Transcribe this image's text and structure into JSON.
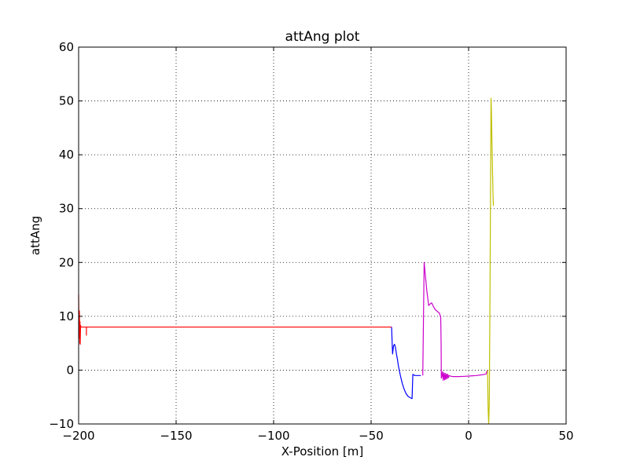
{
  "chart_data": {
    "type": "line",
    "title": "attAng plot",
    "xlabel": "X-Position [m]",
    "ylabel": "attAng",
    "xlim": [
      -200,
      50
    ],
    "ylim": [
      -10,
      60
    ],
    "x_ticks": [
      -200,
      -150,
      -100,
      -50,
      0,
      50
    ],
    "y_ticks": [
      -10,
      0,
      10,
      20,
      30,
      40,
      50,
      60
    ],
    "x_tick_labels": [
      "−200",
      "−150",
      "−100",
      "−50",
      "0",
      "50"
    ],
    "y_tick_labels": [
      "−10",
      "0",
      "10",
      "20",
      "30",
      "40",
      "50",
      "60"
    ],
    "grid": true,
    "grid_style": "dotted",
    "legend": false,
    "series": [
      {
        "color": "#ff0000",
        "x": [
          -200,
          -199.8,
          -199.6,
          -199.4,
          -199.3,
          -199.2,
          -199.0,
          -198.8,
          -198.5,
          -197.5,
          -196.5,
          -196.0,
          -196.0,
          -196.0,
          -195.0,
          -150,
          -100,
          -50,
          -39.5
        ],
        "y": [
          14,
          6,
          11,
          5,
          9,
          4.8,
          8.3,
          8.0,
          8.0,
          8.0,
          8.0,
          8.0,
          6.5,
          8.0,
          8.0,
          8.0,
          8.0,
          8.0,
          8.0
        ]
      },
      {
        "color": "#0000ff",
        "x": [
          -39.5,
          -39.2,
          -39,
          -38.5,
          -38,
          -37.5,
          -37,
          -36.5,
          -36,
          -35,
          -34,
          -33,
          -32,
          -31,
          -30,
          -29.5,
          -29,
          -28.8,
          -28.6,
          -27.5,
          -26.5,
          -25.5,
          -24.5
        ],
        "y": [
          8,
          5,
          3,
          4.5,
          4.8,
          4.2,
          3.0,
          2.0,
          0.8,
          -1.0,
          -2.5,
          -3.6,
          -4.4,
          -4.9,
          -5.1,
          -5.2,
          -5.3,
          -3,
          -0.8,
          -1,
          -1,
          -1,
          -1
        ]
      },
      {
        "color": "#cc00cc",
        "x": [
          -23.5,
          -22.8,
          -21.5,
          -20.5,
          -20,
          -19,
          -18,
          -17,
          -15,
          -14.3,
          -14.1,
          -14,
          -13.8,
          -13.4,
          -13.0,
          -12.7,
          -12.3,
          -12.0,
          -11.7,
          -11.3,
          -11.0,
          -10.7,
          -10.3,
          -10.0,
          -9.5,
          -8,
          -5,
          -2,
          0,
          2,
          4,
          6,
          8,
          9,
          9.3,
          9.7
        ],
        "y": [
          -1,
          20,
          15,
          12.0,
          12.2,
          12.5,
          11.8,
          11.2,
          10.6,
          9.8,
          5,
          -1.5,
          -1.3,
          -0.3,
          -1.9,
          -0.5,
          -1.8,
          -0.6,
          -1.7,
          -0.7,
          -1.6,
          -0.8,
          -1.4,
          -1.0,
          -1.1,
          -1.2,
          -1.2,
          -1.15,
          -1.1,
          -1.05,
          -1.0,
          -0.9,
          -0.8,
          -0.7,
          -0.3,
          0
        ]
      },
      {
        "color": "#bfbf00",
        "x": [
          9.7,
          10.0,
          10.3,
          10.6,
          10.9,
          11.2,
          11.5,
          11.7,
          11.9,
          12.2,
          12.5,
          12.7
        ],
        "y": [
          0,
          -7,
          -10,
          -6,
          10,
          30,
          50.5,
          48,
          44,
          38,
          33,
          30.5
        ]
      }
    ]
  }
}
